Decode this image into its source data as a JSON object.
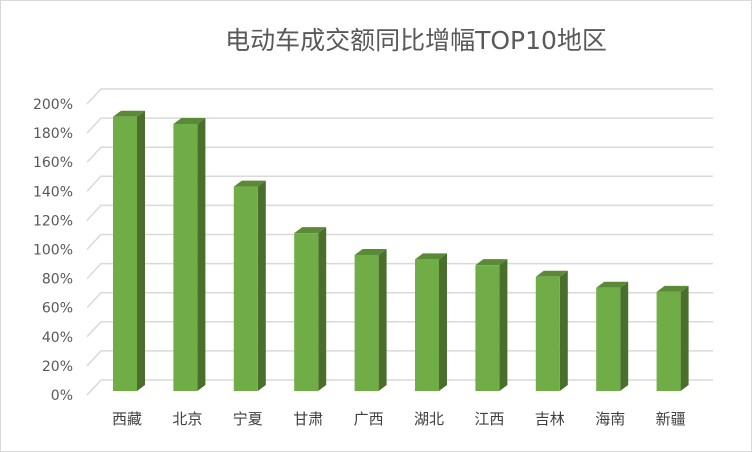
{
  "chart_data": {
    "type": "bar",
    "title": "电动车成交额同比增幅TOP10地区",
    "categories": [
      "西藏",
      "北京",
      "宁夏",
      "甘肃",
      "广西",
      "湖北",
      "江西",
      "吉林",
      "海南",
      "新疆"
    ],
    "values": [
      194,
      189,
      146,
      114,
      99,
      96,
      92,
      84,
      76.5,
      73.6
    ],
    "value_unit": "%",
    "ylim": [
      0,
      200
    ],
    "yticks": [
      "0%",
      "20%",
      "40%",
      "60%",
      "80%",
      "100%",
      "120%",
      "140%",
      "160%",
      "180%",
      "200%"
    ],
    "grid": true,
    "style": "3d-column",
    "colors": {
      "front": "#70ad47",
      "side": "#4a6f2c",
      "top": "#5b8a37",
      "grid": "#d9d9d9"
    }
  }
}
